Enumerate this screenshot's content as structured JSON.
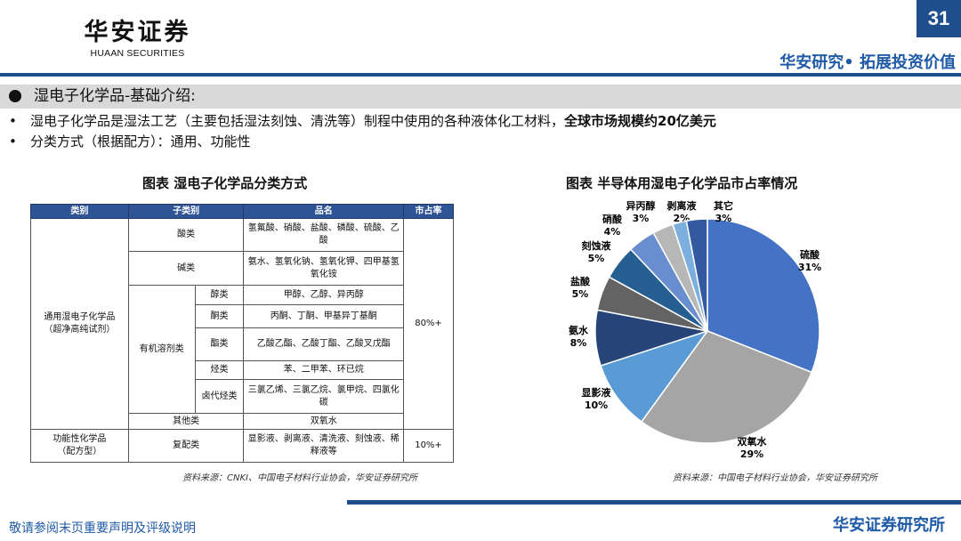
{
  "header": {
    "logo_cn": "华安证券",
    "logo_en": "HUAAN SECURITIES",
    "page_number": "31",
    "slogan": "华安研究• 拓展投资价值"
  },
  "section": {
    "title": "湿电子化学品-基础介绍:"
  },
  "bullets": [
    {
      "text": "湿电子化学品是湿法工艺（主要包括湿法刻蚀、清洗等）制程中使用的各种液体化工材料，",
      "bold": "全球市场规模约20亿美元"
    },
    {
      "text": "分类方式（根据配方）：通用、功能性",
      "bold": ""
    }
  ],
  "table_figure": {
    "title": "图表  湿电子化学品分类方式",
    "headers": [
      "类别",
      "子类别",
      "品名",
      "市占率"
    ],
    "cat_general": "通用湿电子化学品\n（超净高纯试剂）",
    "cat_functional": "功能性化学品\n（配方型）",
    "share_general": "80%+",
    "share_functional": "10%+",
    "sub_acid": "酸类",
    "sub_base": "碱类",
    "sub_solvent": "有机溶剂类",
    "sub_other": "其他类",
    "sub_formula": "复配类",
    "solvents": [
      {
        "type": "醇类",
        "items": "甲醇、乙醇、异丙醇"
      },
      {
        "type": "酮类",
        "items": "丙酮、丁酮、甲基异丁基酮"
      },
      {
        "type": "酯类",
        "items": "乙酸乙酯、乙酸丁酯、乙酸叉戊酯"
      },
      {
        "type": "烃类",
        "items": "苯、二甲苯、环已烷"
      },
      {
        "type": "卤代烃类",
        "items": "三氯乙烯、三氯乙烷、氯甲烷、四氯化碳"
      }
    ],
    "acid_items": "氢氟酸、硝酸、盐酸、磷酸、硫酸、乙酸",
    "base_items": "氨水、氢氧化钠、氢氧化钾、四甲基氢氧化铵",
    "other_items": "双氧水",
    "formula_items": "显影液、剥离液、清洗液、刻蚀液、稀释液等",
    "source": "资料来源：CNKI、中国电子材料行业协会，华安证券研究所"
  },
  "pie_figure": {
    "title": "图表  半导体用湿电子化学品市占率情况",
    "source": "资料来源：中国电子材料行业协会，华安证券研究所"
  },
  "chart_data": {
    "type": "pie",
    "title": "图表  半导体用湿电子化学品市占率情况",
    "unit": "%",
    "slices": [
      {
        "label": "硫酸",
        "value": 31,
        "display": "31%",
        "color": "#4472c4"
      },
      {
        "label": "双氧水",
        "value": 29,
        "display": "29%",
        "color": "#a5a5a5"
      },
      {
        "label": "显影液",
        "value": 10,
        "display": "10%",
        "color": "#5b9bd5"
      },
      {
        "label": "氨水",
        "value": 8,
        "display": "8%",
        "color": "#264478"
      },
      {
        "label": "盐酸",
        "value": 5,
        "display": "5%",
        "color": "#636363"
      },
      {
        "label": "刻蚀液",
        "value": 5,
        "display": "5%",
        "color": "#255e91"
      },
      {
        "label": "硝酸",
        "value": 4,
        "display": "4%",
        "color": "#698ed0"
      },
      {
        "label": "异丙醇",
        "value": 3,
        "display": "3%",
        "color": "#b7b7b7"
      },
      {
        "label": "剥离液",
        "value": 2,
        "display": "2%",
        "color": "#7cafdd"
      },
      {
        "label": "其它",
        "value": 3,
        "display": "3%",
        "color": "#335aa1"
      }
    ]
  },
  "footer": {
    "disclaimer": "敬请参阅末页重要声明及评级说明",
    "org": "华安证券研究所"
  }
}
